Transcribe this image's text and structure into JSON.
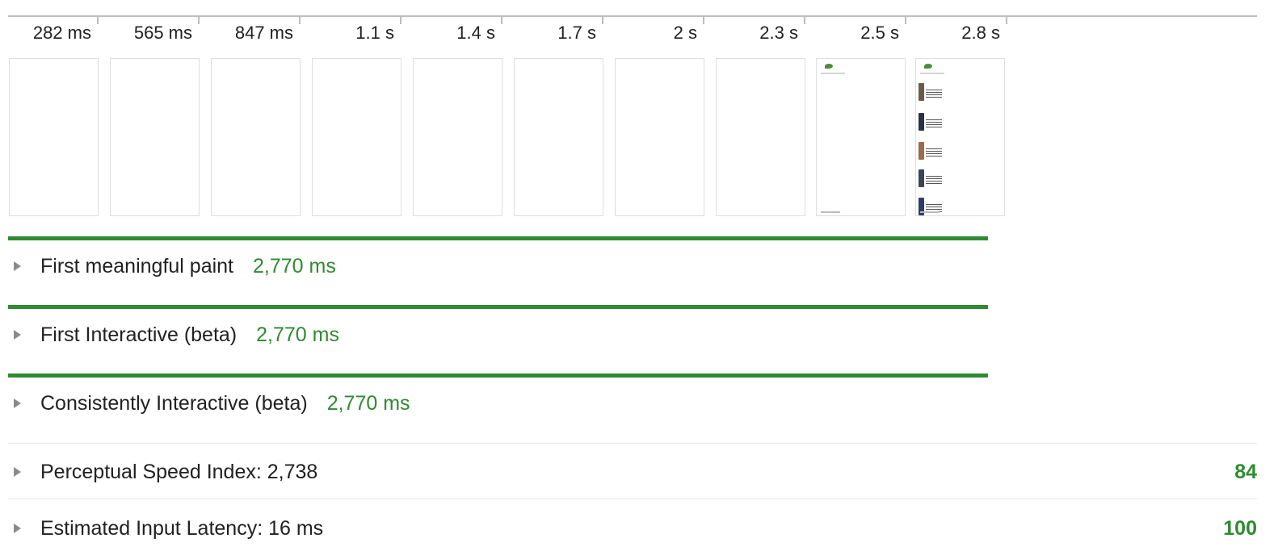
{
  "filmstrip": {
    "timestamps": [
      "282 ms",
      "565 ms",
      "847 ms",
      "1.1 s",
      "1.4 s",
      "1.7 s",
      "2 s",
      "2.3 s",
      "2.5 s",
      "2.8 s"
    ]
  },
  "metrics": [
    {
      "label": "First meaningful paint",
      "value": "2,770 ms"
    },
    {
      "label": "First Interactive (beta)",
      "value": "2,770 ms"
    },
    {
      "label": "Consistently Interactive (beta)",
      "value": "2,770 ms"
    }
  ],
  "audits": [
    {
      "label": "Perceptual Speed Index: 2,738",
      "score": "84"
    },
    {
      "label": "Estimated Input Latency: 16 ms",
      "score": "100"
    }
  ],
  "colors": {
    "pass": "#2e8b30",
    "rule": "#bdbdbd",
    "toggle": "#8a8a8a"
  },
  "icons": {
    "expand": "triangle-right-icon"
  }
}
